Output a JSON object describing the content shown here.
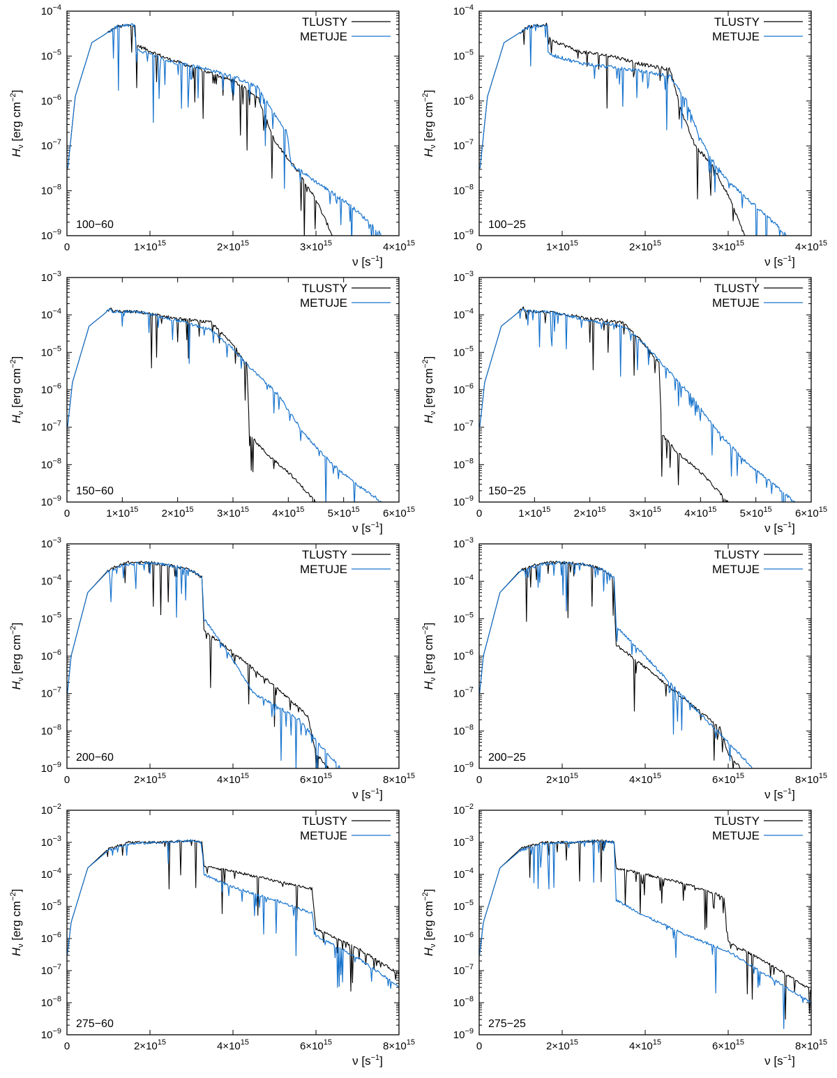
{
  "colors": {
    "tlusty": "#000000",
    "metuje": "#1874cd",
    "frame": "#000000"
  },
  "figure": {
    "ylabel": {
      "main": "H",
      "sub": "ν",
      "units": " [erg cm",
      "exp": "−2",
      "close": "]"
    },
    "xlabel": {
      "main": "ν [s",
      "exp": "−1",
      "close": "]"
    },
    "legend": [
      "TLUSTY",
      "METUJE"
    ]
  },
  "chart_data": [
    {
      "type": "line",
      "title": "100−60",
      "xlim": [
        0,
        4000000000000000.0
      ],
      "ylim_exp": [
        -9,
        -4
      ],
      "xticks": [
        {
          "m": "0",
          "e": ""
        },
        {
          "m": "1×10",
          "e": "15"
        },
        {
          "m": "2×10",
          "e": "15"
        },
        {
          "m": "3×10",
          "e": "15"
        },
        {
          "m": "4×10",
          "e": "15"
        }
      ],
      "yticks": [
        "−9",
        "−8",
        "−7",
        "−6",
        "−5",
        "−4"
      ],
      "series": [
        {
          "name": "TLUSTY",
          "x": [
            10000000000000.0,
            100000000000000.0,
            300000000000000.0,
            600000000000000.0,
            820000000000000.0,
            830000000000000.0,
            1200000000000000.0,
            1600000000000000.0,
            2000000000000000.0,
            2300000000000000.0,
            2500000000000000.0,
            2800000000000000.0,
            3000000000000000.0,
            3100000000000000.0,
            3200000000000000.0
          ],
          "y": [
            -7.5,
            -5.9,
            -4.7,
            -4.35,
            -4.3,
            -4.75,
            -5.05,
            -5.3,
            -5.55,
            -5.9,
            -6.9,
            -7.6,
            -8.2,
            -8.6,
            -9.0
          ]
        },
        {
          "name": "METUJE",
          "x": [
            10000000000000.0,
            100000000000000.0,
            300000000000000.0,
            600000000000000.0,
            820000000000000.0,
            830000000000000.0,
            1200000000000000.0,
            1600000000000000.0,
            2000000000000000.0,
            2300000000000000.0,
            2500000000000000.0,
            2650000000000000.0,
            2700000000000000.0,
            3000000000000000.0,
            3400000000000000.0,
            3700000000000000.0,
            3800000000000000.0
          ],
          "y": [
            -7.5,
            -5.9,
            -4.7,
            -4.35,
            -4.3,
            -4.85,
            -5.1,
            -5.25,
            -5.45,
            -5.7,
            -6.3,
            -6.7,
            -7.4,
            -7.8,
            -8.3,
            -8.8,
            -9.0
          ]
        }
      ]
    },
    {
      "type": "line",
      "title": "100−25",
      "xlim": [
        0,
        4000000000000000.0
      ],
      "ylim_exp": [
        -9,
        -4
      ],
      "xticks": [
        {
          "m": "0",
          "e": ""
        },
        {
          "m": "1×10",
          "e": "15"
        },
        {
          "m": "2×10",
          "e": "15"
        },
        {
          "m": "3×10",
          "e": "15"
        },
        {
          "m": "4×10",
          "e": "15"
        }
      ],
      "yticks": [
        "−9",
        "−8",
        "−7",
        "−6",
        "−5",
        "−4"
      ],
      "series": [
        {
          "name": "TLUSTY",
          "x": [
            10000000000000.0,
            100000000000000.0,
            300000000000000.0,
            600000000000000.0,
            820000000000000.0,
            830000000000000.0,
            1200000000000000.0,
            1600000000000000.0,
            2000000000000000.0,
            2300000000000000.0,
            2450000000000000.0,
            2600000000000000.0,
            2800000000000000.0,
            3000000000000000.0,
            3200000000000000.0
          ],
          "y": [
            -7.5,
            -5.9,
            -4.7,
            -4.35,
            -4.3,
            -4.6,
            -4.9,
            -5.0,
            -5.2,
            -5.3,
            -6.3,
            -7.0,
            -7.4,
            -8.1,
            -9.0
          ]
        },
        {
          "name": "METUJE",
          "x": [
            10000000000000.0,
            100000000000000.0,
            300000000000000.0,
            600000000000000.0,
            820000000000000.0,
            830000000000000.0,
            1200000000000000.0,
            1600000000000000.0,
            2000000000000000.0,
            2300000000000000.0,
            2500000000000000.0,
            2650000000000000.0,
            2800000000000000.0,
            3000000000000000.0,
            3300000000000000.0,
            3600000000000000.0,
            3700000000000000.0
          ],
          "y": [
            -7.5,
            -5.9,
            -4.7,
            -4.35,
            -4.3,
            -4.95,
            -5.15,
            -5.25,
            -5.35,
            -5.45,
            -6.0,
            -6.8,
            -7.3,
            -7.8,
            -8.3,
            -8.8,
            -9.0
          ]
        }
      ]
    },
    {
      "type": "line",
      "title": "150−60",
      "xlim": [
        0,
        6000000000000000.0
      ],
      "ylim_exp": [
        -9,
        -3
      ],
      "xticks": [
        {
          "m": "0",
          "e": ""
        },
        {
          "m": "1×10",
          "e": "15"
        },
        {
          "m": "2×10",
          "e": "15"
        },
        {
          "m": "3×10",
          "e": "15"
        },
        {
          "m": "4×10",
          "e": "15"
        },
        {
          "m": "5×10",
          "e": "15"
        },
        {
          "m": "6×10",
          "e": "15"
        }
      ],
      "yticks": [
        "−9",
        "−8",
        "−7",
        "−6",
        "−5",
        "−4",
        "−3"
      ],
      "series": [
        {
          "name": "TLUSTY",
          "x": [
            10000000000000.0,
            100000000000000.0,
            400000000000000.0,
            800000000000000.0,
            820000000000000.0,
            1300000000000000.0,
            2000000000000000.0,
            2600000000000000.0,
            3000000000000000.0,
            3250000000000000.0,
            3300000000000000.0,
            3600000000000000.0,
            4000000000000000.0,
            4500000000000000.0
          ],
          "y": [
            -7.0,
            -5.8,
            -4.3,
            -3.82,
            -3.9,
            -3.92,
            -4.1,
            -4.2,
            -4.8,
            -5.3,
            -7.2,
            -7.7,
            -8.2,
            -9.0
          ]
        },
        {
          "name": "METUJE",
          "x": [
            10000000000000.0,
            100000000000000.0,
            400000000000000.0,
            800000000000000.0,
            820000000000000.0,
            1300000000000000.0,
            2000000000000000.0,
            2600000000000000.0,
            3000000000000000.0,
            3300000000000000.0,
            3800000000000000.0,
            4300000000000000.0,
            4800000000000000.0,
            5300000000000000.0,
            5700000000000000.0
          ],
          "y": [
            -7.0,
            -5.8,
            -4.3,
            -3.82,
            -3.9,
            -3.92,
            -4.15,
            -4.4,
            -4.9,
            -5.4,
            -6.1,
            -7.2,
            -8.0,
            -8.6,
            -9.0
          ]
        }
      ]
    },
    {
      "type": "line",
      "title": "150−25",
      "xlim": [
        0,
        6000000000000000.0
      ],
      "ylim_exp": [
        -9,
        -3
      ],
      "xticks": [
        {
          "m": "0",
          "e": ""
        },
        {
          "m": "1×10",
          "e": "15"
        },
        {
          "m": "2×10",
          "e": "15"
        },
        {
          "m": "3×10",
          "e": "15"
        },
        {
          "m": "4×10",
          "e": "15"
        },
        {
          "m": "5×10",
          "e": "15"
        },
        {
          "m": "6×10",
          "e": "15"
        }
      ],
      "yticks": [
        "−9",
        "−8",
        "−7",
        "−6",
        "−5",
        "−4",
        "−3"
      ],
      "series": [
        {
          "name": "TLUSTY",
          "x": [
            10000000000000.0,
            100000000000000.0,
            400000000000000.0,
            800000000000000.0,
            820000000000000.0,
            1300000000000000.0,
            2000000000000000.0,
            2600000000000000.0,
            3000000000000000.0,
            3250000000000000.0,
            3300000000000000.0,
            3600000000000000.0,
            4000000000000000.0,
            4500000000000000.0
          ],
          "y": [
            -7.0,
            -5.8,
            -4.3,
            -3.82,
            -3.9,
            -3.92,
            -4.1,
            -4.2,
            -4.8,
            -5.3,
            -7.2,
            -7.7,
            -8.2,
            -9.0
          ]
        },
        {
          "name": "METUJE",
          "x": [
            10000000000000.0,
            100000000000000.0,
            400000000000000.0,
            800000000000000.0,
            820000000000000.0,
            1300000000000000.0,
            2000000000000000.0,
            2600000000000000.0,
            3000000000000000.0,
            3300000000000000.0,
            3800000000000000.0,
            4300000000000000.0,
            4800000000000000.0,
            5300000000000000.0,
            5700000000000000.0
          ],
          "y": [
            -7.0,
            -5.8,
            -4.3,
            -3.82,
            -3.9,
            -3.92,
            -4.15,
            -4.3,
            -4.8,
            -5.3,
            -6.1,
            -7.1,
            -7.9,
            -8.5,
            -9.0
          ]
        }
      ]
    },
    {
      "type": "line",
      "title": "200−60",
      "xlim": [
        0,
        8000000000000000.0
      ],
      "ylim_exp": [
        -9,
        -3
      ],
      "xticks": [
        {
          "m": "0",
          "e": ""
        },
        {
          "m": "2×10",
          "e": "15"
        },
        {
          "m": "4×10",
          "e": "15"
        },
        {
          "m": "6×10",
          "e": "15"
        },
        {
          "m": "8×10",
          "e": "15"
        }
      ],
      "yticks": [
        "−9",
        "−8",
        "−7",
        "−6",
        "−5",
        "−4",
        "−3"
      ],
      "series": [
        {
          "name": "TLUSTY",
          "x": [
            10000000000000.0,
            100000000000000.0,
            500000000000000.0,
            1000000000000000.0,
            1400000000000000.0,
            2000000000000000.0,
            2600000000000000.0,
            3000000000000000.0,
            3250000000000000.0,
            3300000000000000.0,
            4000000000000000.0,
            5000000000000000.0,
            5800000000000000.0,
            6000000000000000.0,
            6300000000000000.0
          ],
          "y": [
            -7.0,
            -6.0,
            -4.3,
            -3.7,
            -3.5,
            -3.5,
            -3.6,
            -3.7,
            -3.9,
            -5.3,
            -5.9,
            -6.8,
            -7.6,
            -8.6,
            -9.0
          ]
        },
        {
          "name": "METUJE",
          "x": [
            10000000000000.0,
            100000000000000.0,
            500000000000000.0,
            1000000000000000.0,
            1400000000000000.0,
            2000000000000000.0,
            2600000000000000.0,
            3000000000000000.0,
            3250000000000000.0,
            3300000000000000.0,
            4000000000000000.0,
            4500000000000000.0,
            5000000000000000.0,
            5600000000000000.0,
            6200000000000000.0,
            6600000000000000.0
          ],
          "y": [
            -7.0,
            -6.0,
            -4.3,
            -3.72,
            -3.55,
            -3.5,
            -3.6,
            -3.7,
            -3.9,
            -5.0,
            -6.1,
            -7.0,
            -7.3,
            -7.7,
            -8.5,
            -9.0
          ]
        }
      ]
    },
    {
      "type": "line",
      "title": "200−25",
      "xlim": [
        0,
        8000000000000000.0
      ],
      "ylim_exp": [
        -9,
        -3
      ],
      "xticks": [
        {
          "m": "0",
          "e": ""
        },
        {
          "m": "2×10",
          "e": "15"
        },
        {
          "m": "4×10",
          "e": "15"
        },
        {
          "m": "6×10",
          "e": "15"
        },
        {
          "m": "8×10",
          "e": "15"
        }
      ],
      "yticks": [
        "−9",
        "−8",
        "−7",
        "−6",
        "−5",
        "−4",
        "−3"
      ],
      "series": [
        {
          "name": "TLUSTY",
          "x": [
            10000000000000.0,
            100000000000000.0,
            500000000000000.0,
            1000000000000000.0,
            1500000000000000.0,
            2000000000000000.0,
            2600000000000000.0,
            3000000000000000.0,
            3250000000000000.0,
            3300000000000000.0,
            4000000000000000.0,
            5000000000000000.0,
            5800000000000000.0,
            6000000000000000.0,
            6300000000000000.0
          ],
          "y": [
            -7.0,
            -6.0,
            -4.3,
            -3.7,
            -3.5,
            -3.5,
            -3.55,
            -3.7,
            -3.9,
            -5.7,
            -6.3,
            -7.2,
            -7.9,
            -8.6,
            -9.0
          ]
        },
        {
          "name": "METUJE",
          "x": [
            10000000000000.0,
            100000000000000.0,
            500000000000000.0,
            1000000000000000.0,
            1500000000000000.0,
            2000000000000000.0,
            2600000000000000.0,
            3000000000000000.0,
            3250000000000000.0,
            3300000000000000.0,
            4000000000000000.0,
            4500000000000000.0,
            5200000000000000.0,
            6000000000000000.0,
            6600000000000000.0
          ],
          "y": [
            -7.0,
            -6.0,
            -4.3,
            -3.72,
            -3.55,
            -3.5,
            -3.55,
            -3.7,
            -3.9,
            -5.2,
            -6.0,
            -6.6,
            -7.4,
            -8.3,
            -9.0
          ]
        }
      ]
    },
    {
      "type": "line",
      "title": "275−60",
      "xlim": [
        0,
        8000000000000000.0
      ],
      "ylim_exp": [
        -9,
        -2
      ],
      "xticks": [
        {
          "m": "0",
          "e": ""
        },
        {
          "m": "2×10",
          "e": "15"
        },
        {
          "m": "4×10",
          "e": "15"
        },
        {
          "m": "6×10",
          "e": "15"
        },
        {
          "m": "8×10",
          "e": "15"
        }
      ],
      "yticks": [
        "−9",
        "−8",
        "−7",
        "−6",
        "−5",
        "−4",
        "−3",
        "−2"
      ],
      "series": [
        {
          "name": "TLUSTY",
          "x": [
            10000000000000.0,
            100000000000000.0,
            500000000000000.0,
            1000000000000000.0,
            1500000000000000.0,
            2200000000000000.0,
            3000000000000000.0,
            3250000000000000.0,
            3300000000000000.0,
            4000000000000000.0,
            5000000000000000.0,
            5900000000000000.0,
            6000000000000000.0,
            7000000000000000.0,
            8000000000000000.0
          ],
          "y": [
            -6.5,
            -5.5,
            -3.8,
            -3.2,
            -3.0,
            -3.0,
            -2.95,
            -3.0,
            -3.75,
            -3.9,
            -4.2,
            -4.45,
            -5.7,
            -6.3,
            -7.1
          ]
        },
        {
          "name": "METUJE",
          "x": [
            10000000000000.0,
            100000000000000.0,
            500000000000000.0,
            1000000000000000.0,
            1500000000000000.0,
            2200000000000000.0,
            3000000000000000.0,
            3250000000000000.0,
            3300000000000000.0,
            4000000000000000.0,
            5000000000000000.0,
            5900000000000000.0,
            6000000000000000.0,
            7000000000000000.0,
            8000000000000000.0
          ],
          "y": [
            -6.5,
            -5.5,
            -3.8,
            -3.25,
            -3.05,
            -3.0,
            -2.95,
            -3.0,
            -4.0,
            -4.4,
            -4.8,
            -5.2,
            -5.9,
            -6.6,
            -7.5
          ]
        }
      ]
    },
    {
      "type": "line",
      "title": "275−25",
      "xlim": [
        0,
        8000000000000000.0
      ],
      "ylim_exp": [
        -9,
        -2
      ],
      "xticks": [
        {
          "m": "0",
          "e": ""
        },
        {
          "m": "2×10",
          "e": "15"
        },
        {
          "m": "4×10",
          "e": "15"
        },
        {
          "m": "6×10",
          "e": "15"
        },
        {
          "m": "8×10",
          "e": "15"
        }
      ],
      "yticks": [
        "−9",
        "−8",
        "−7",
        "−6",
        "−5",
        "−4",
        "−3",
        "−2"
      ],
      "series": [
        {
          "name": "TLUSTY",
          "x": [
            10000000000000.0,
            100000000000000.0,
            500000000000000.0,
            1000000000000000.0,
            1500000000000000.0,
            2200000000000000.0,
            3000000000000000.0,
            3250000000000000.0,
            3300000000000000.0,
            4000000000000000.0,
            5000000000000000.0,
            5900000000000000.0,
            6000000000000000.0,
            7000000000000000.0,
            8000000000000000.0
          ],
          "y": [
            -6.5,
            -5.5,
            -3.8,
            -3.2,
            -3.0,
            -3.0,
            -2.95,
            -3.0,
            -3.8,
            -4.0,
            -4.3,
            -4.7,
            -6.1,
            -6.8,
            -7.6
          ]
        },
        {
          "name": "METUJE",
          "x": [
            10000000000000.0,
            100000000000000.0,
            500000000000000.0,
            1000000000000000.0,
            1500000000000000.0,
            2200000000000000.0,
            3000000000000000.0,
            3250000000000000.0,
            3300000000000000.0,
            4000000000000000.0,
            5000000000000000.0,
            6000000000000000.0,
            7000000000000000.0,
            8000000000000000.0
          ],
          "y": [
            -6.5,
            -5.5,
            -3.8,
            -3.25,
            -3.05,
            -3.0,
            -2.95,
            -3.0,
            -4.8,
            -5.3,
            -5.9,
            -6.4,
            -7.2,
            -8.0
          ]
        }
      ]
    }
  ]
}
